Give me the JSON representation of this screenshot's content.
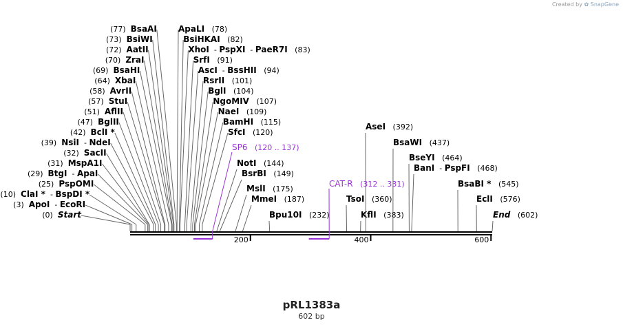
{
  "header": {
    "created_by": "Created by",
    "brand": "SnapGene"
  },
  "plasmid": {
    "name": "pRL1383a",
    "length_label": "602 bp",
    "length": 602
  },
  "colors": {
    "feature": "#9a33d6",
    "line": "#666666",
    "ink": "#000000"
  },
  "ruler_ticks": [
    {
      "value": 200,
      "label": "200"
    },
    {
      "value": 400,
      "label": "400"
    },
    {
      "value": 600,
      "label": "600"
    }
  ],
  "features": [
    {
      "name": "SP6",
      "range": "(120 .. 137)",
      "start": 120,
      "end": 137
    },
    {
      "name": "CAT-R",
      "range": "(312 .. 331)",
      "start": 312,
      "end": 331
    }
  ],
  "left_sites": [
    {
      "id": "start",
      "pos": 0,
      "parts": [
        "Start"
      ],
      "pos_label": "(0)",
      "italic": true
    },
    {
      "id": "apoi",
      "pos": 3,
      "parts": [
        "ApoI",
        "EcoRI"
      ],
      "pos_label": "(3)"
    },
    {
      "id": "clai",
      "pos": 10,
      "parts": [
        "ClaI *",
        "BspDI *"
      ],
      "pos_label": "(10)"
    },
    {
      "id": "pspomi",
      "pos": 25,
      "parts": [
        "PspOMI"
      ],
      "pos_label": "(25)"
    },
    {
      "id": "btgi",
      "pos": 29,
      "parts": [
        "BtgI",
        "ApaI"
      ],
      "pos_label": "(29)"
    },
    {
      "id": "mspa1i",
      "pos": 31,
      "parts": [
        "MspA1I"
      ],
      "pos_label": "(31)"
    },
    {
      "id": "sacii",
      "pos": 32,
      "parts": [
        "SacII"
      ],
      "pos_label": "(32)"
    },
    {
      "id": "nsii",
      "pos": 39,
      "parts": [
        "NsiI",
        "NdeI"
      ],
      "pos_label": "(39)"
    },
    {
      "id": "bcli",
      "pos": 42,
      "parts": [
        "BclI *"
      ],
      "pos_label": "(42)"
    },
    {
      "id": "bglii",
      "pos": 47,
      "parts": [
        "BglII"
      ],
      "pos_label": "(47)"
    },
    {
      "id": "aflii",
      "pos": 51,
      "parts": [
        "AflII"
      ],
      "pos_label": "(51)"
    },
    {
      "id": "stui",
      "pos": 57,
      "parts": [
        "StuI"
      ],
      "pos_label": "(57)"
    },
    {
      "id": "avrii",
      "pos": 58,
      "parts": [
        "AvrII"
      ],
      "pos_label": "(58)"
    },
    {
      "id": "xbai",
      "pos": 64,
      "parts": [
        "XbaI"
      ],
      "pos_label": "(64)"
    },
    {
      "id": "bsahi",
      "pos": 69,
      "parts": [
        "BsaHI"
      ],
      "pos_label": "(69)"
    },
    {
      "id": "zrai",
      "pos": 70,
      "parts": [
        "ZraI"
      ],
      "pos_label": "(70)"
    },
    {
      "id": "aatii",
      "pos": 72,
      "parts": [
        "AatII"
      ],
      "pos_label": "(72)"
    },
    {
      "id": "bsiwi",
      "pos": 73,
      "parts": [
        "BsiWI"
      ],
      "pos_label": "(73)"
    },
    {
      "id": "bsaai",
      "pos": 77,
      "parts": [
        "BsaAI"
      ],
      "pos_label": "(77)"
    }
  ],
  "right_sites": [
    {
      "id": "apali",
      "pos": 78,
      "parts": [
        "ApaLI"
      ],
      "pos_label": "(78)"
    },
    {
      "id": "bsihkai",
      "pos": 82,
      "parts": [
        "BsiHKAI"
      ],
      "pos_label": "(82)"
    },
    {
      "id": "xhoi",
      "pos": 83,
      "parts": [
        "XhoI",
        "PspXI",
        "PaeR7I"
      ],
      "pos_label": "(83)"
    },
    {
      "id": "srfi",
      "pos": 91,
      "parts": [
        "SrfI"
      ],
      "pos_label": "(91)"
    },
    {
      "id": "asci",
      "pos": 94,
      "parts": [
        "AscI",
        "BssHII"
      ],
      "pos_label": "(94)"
    },
    {
      "id": "rsrii",
      "pos": 101,
      "parts": [
        "RsrII"
      ],
      "pos_label": "(101)"
    },
    {
      "id": "bgli",
      "pos": 104,
      "parts": [
        "BglI"
      ],
      "pos_label": "(104)"
    },
    {
      "id": "ngomiv",
      "pos": 107,
      "parts": [
        "NgoMIV"
      ],
      "pos_label": "(107)"
    },
    {
      "id": "naei",
      "pos": 109,
      "parts": [
        "NaeI"
      ],
      "pos_label": "(109)"
    },
    {
      "id": "bamhi",
      "pos": 115,
      "parts": [
        "BamHI"
      ],
      "pos_label": "(115)"
    },
    {
      "id": "sfci",
      "pos": 120,
      "parts": [
        "SfcI"
      ],
      "pos_label": "(120)"
    }
  ],
  "lower_sites": [
    {
      "id": "noti",
      "pos": 144,
      "parts": [
        "NotI"
      ],
      "pos_label": "(144)"
    },
    {
      "id": "bsrbi",
      "pos": 149,
      "parts": [
        "BsrBI"
      ],
      "pos_label": "(149)"
    },
    {
      "id": "msli",
      "pos": 175,
      "parts": [
        "MslI"
      ],
      "pos_label": "(175)"
    },
    {
      "id": "mmei",
      "pos": 187,
      "parts": [
        "MmeI"
      ],
      "pos_label": "(187)"
    },
    {
      "id": "bpu10i",
      "pos": 232,
      "parts": [
        "Bpu10I"
      ],
      "pos_label": "(232)"
    },
    {
      "id": "tsoi",
      "pos": 360,
      "parts": [
        "TsoI"
      ],
      "pos_label": "(360)"
    },
    {
      "id": "kfli",
      "pos": 383,
      "parts": [
        "KflI"
      ],
      "pos_label": "(383)"
    },
    {
      "id": "asei",
      "pos": 392,
      "parts": [
        "AseI"
      ],
      "pos_label": "(392)"
    },
    {
      "id": "bsawi",
      "pos": 437,
      "parts": [
        "BsaWI"
      ],
      "pos_label": "(437)"
    },
    {
      "id": "bseyi",
      "pos": 464,
      "parts": [
        "BseYI"
      ],
      "pos_label": "(464)"
    },
    {
      "id": "bani",
      "pos": 468,
      "parts": [
        "BanI",
        "PspFI"
      ],
      "pos_label": "(468)"
    },
    {
      "id": "bsabi",
      "pos": 545,
      "parts": [
        "BsaBI *"
      ],
      "pos_label": "(545)"
    },
    {
      "id": "ecli",
      "pos": 576,
      "parts": [
        "EclI"
      ],
      "pos_label": "(576)"
    },
    {
      "id": "end",
      "pos": 602,
      "parts": [
        "End"
      ],
      "pos_label": "(602)",
      "italic": true
    }
  ]
}
